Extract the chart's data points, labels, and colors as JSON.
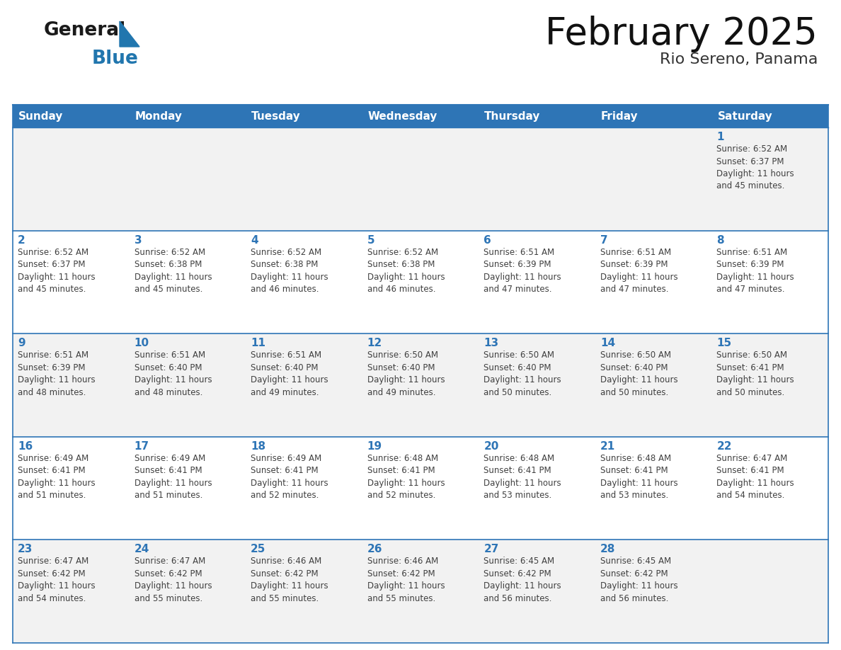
{
  "title": "February 2025",
  "subtitle": "Rio Sereno, Panama",
  "header_bg_color": "#2E75B6",
  "header_text_color": "#FFFFFF",
  "weekdays": [
    "Sunday",
    "Monday",
    "Tuesday",
    "Wednesday",
    "Thursday",
    "Friday",
    "Saturday"
  ],
  "bg_color": "#FFFFFF",
  "cell_bg_color_even": "#F2F2F2",
  "cell_bg_color_odd": "#FFFFFF",
  "day_num_color": "#2E75B6",
  "text_color": "#404040",
  "border_color": "#2E75B6",
  "logo_general_color": "#1A1A1A",
  "logo_blue_color": "#2176AE",
  "days": [
    {
      "day": 1,
      "col": 6,
      "row": 0,
      "sunrise": "6:52 AM",
      "sunset": "6:37 PM",
      "daylight_line1": "Daylight: 11 hours",
      "daylight_line2": "and 45 minutes."
    },
    {
      "day": 2,
      "col": 0,
      "row": 1,
      "sunrise": "6:52 AM",
      "sunset": "6:37 PM",
      "daylight_line1": "Daylight: 11 hours",
      "daylight_line2": "and 45 minutes."
    },
    {
      "day": 3,
      "col": 1,
      "row": 1,
      "sunrise": "6:52 AM",
      "sunset": "6:38 PM",
      "daylight_line1": "Daylight: 11 hours",
      "daylight_line2": "and 45 minutes."
    },
    {
      "day": 4,
      "col": 2,
      "row": 1,
      "sunrise": "6:52 AM",
      "sunset": "6:38 PM",
      "daylight_line1": "Daylight: 11 hours",
      "daylight_line2": "and 46 minutes."
    },
    {
      "day": 5,
      "col": 3,
      "row": 1,
      "sunrise": "6:52 AM",
      "sunset": "6:38 PM",
      "daylight_line1": "Daylight: 11 hours",
      "daylight_line2": "and 46 minutes."
    },
    {
      "day": 6,
      "col": 4,
      "row": 1,
      "sunrise": "6:51 AM",
      "sunset": "6:39 PM",
      "daylight_line1": "Daylight: 11 hours",
      "daylight_line2": "and 47 minutes."
    },
    {
      "day": 7,
      "col": 5,
      "row": 1,
      "sunrise": "6:51 AM",
      "sunset": "6:39 PM",
      "daylight_line1": "Daylight: 11 hours",
      "daylight_line2": "and 47 minutes."
    },
    {
      "day": 8,
      "col": 6,
      "row": 1,
      "sunrise": "6:51 AM",
      "sunset": "6:39 PM",
      "daylight_line1": "Daylight: 11 hours",
      "daylight_line2": "and 47 minutes."
    },
    {
      "day": 9,
      "col": 0,
      "row": 2,
      "sunrise": "6:51 AM",
      "sunset": "6:39 PM",
      "daylight_line1": "Daylight: 11 hours",
      "daylight_line2": "and 48 minutes."
    },
    {
      "day": 10,
      "col": 1,
      "row": 2,
      "sunrise": "6:51 AM",
      "sunset": "6:40 PM",
      "daylight_line1": "Daylight: 11 hours",
      "daylight_line2": "and 48 minutes."
    },
    {
      "day": 11,
      "col": 2,
      "row": 2,
      "sunrise": "6:51 AM",
      "sunset": "6:40 PM",
      "daylight_line1": "Daylight: 11 hours",
      "daylight_line2": "and 49 minutes."
    },
    {
      "day": 12,
      "col": 3,
      "row": 2,
      "sunrise": "6:50 AM",
      "sunset": "6:40 PM",
      "daylight_line1": "Daylight: 11 hours",
      "daylight_line2": "and 49 minutes."
    },
    {
      "day": 13,
      "col": 4,
      "row": 2,
      "sunrise": "6:50 AM",
      "sunset": "6:40 PM",
      "daylight_line1": "Daylight: 11 hours",
      "daylight_line2": "and 50 minutes."
    },
    {
      "day": 14,
      "col": 5,
      "row": 2,
      "sunrise": "6:50 AM",
      "sunset": "6:40 PM",
      "daylight_line1": "Daylight: 11 hours",
      "daylight_line2": "and 50 minutes."
    },
    {
      "day": 15,
      "col": 6,
      "row": 2,
      "sunrise": "6:50 AM",
      "sunset": "6:41 PM",
      "daylight_line1": "Daylight: 11 hours",
      "daylight_line2": "and 50 minutes."
    },
    {
      "day": 16,
      "col": 0,
      "row": 3,
      "sunrise": "6:49 AM",
      "sunset": "6:41 PM",
      "daylight_line1": "Daylight: 11 hours",
      "daylight_line2": "and 51 minutes."
    },
    {
      "day": 17,
      "col": 1,
      "row": 3,
      "sunrise": "6:49 AM",
      "sunset": "6:41 PM",
      "daylight_line1": "Daylight: 11 hours",
      "daylight_line2": "and 51 minutes."
    },
    {
      "day": 18,
      "col": 2,
      "row": 3,
      "sunrise": "6:49 AM",
      "sunset": "6:41 PM",
      "daylight_line1": "Daylight: 11 hours",
      "daylight_line2": "and 52 minutes."
    },
    {
      "day": 19,
      "col": 3,
      "row": 3,
      "sunrise": "6:48 AM",
      "sunset": "6:41 PM",
      "daylight_line1": "Daylight: 11 hours",
      "daylight_line2": "and 52 minutes."
    },
    {
      "day": 20,
      "col": 4,
      "row": 3,
      "sunrise": "6:48 AM",
      "sunset": "6:41 PM",
      "daylight_line1": "Daylight: 11 hours",
      "daylight_line2": "and 53 minutes."
    },
    {
      "day": 21,
      "col": 5,
      "row": 3,
      "sunrise": "6:48 AM",
      "sunset": "6:41 PM",
      "daylight_line1": "Daylight: 11 hours",
      "daylight_line2": "and 53 minutes."
    },
    {
      "day": 22,
      "col": 6,
      "row": 3,
      "sunrise": "6:47 AM",
      "sunset": "6:41 PM",
      "daylight_line1": "Daylight: 11 hours",
      "daylight_line2": "and 54 minutes."
    },
    {
      "day": 23,
      "col": 0,
      "row": 4,
      "sunrise": "6:47 AM",
      "sunset": "6:42 PM",
      "daylight_line1": "Daylight: 11 hours",
      "daylight_line2": "and 54 minutes."
    },
    {
      "day": 24,
      "col": 1,
      "row": 4,
      "sunrise": "6:47 AM",
      "sunset": "6:42 PM",
      "daylight_line1": "Daylight: 11 hours",
      "daylight_line2": "and 55 minutes."
    },
    {
      "day": 25,
      "col": 2,
      "row": 4,
      "sunrise": "6:46 AM",
      "sunset": "6:42 PM",
      "daylight_line1": "Daylight: 11 hours",
      "daylight_line2": "and 55 minutes."
    },
    {
      "day": 26,
      "col": 3,
      "row": 4,
      "sunrise": "6:46 AM",
      "sunset": "6:42 PM",
      "daylight_line1": "Daylight: 11 hours",
      "daylight_line2": "and 55 minutes."
    },
    {
      "day": 27,
      "col": 4,
      "row": 4,
      "sunrise": "6:45 AM",
      "sunset": "6:42 PM",
      "daylight_line1": "Daylight: 11 hours",
      "daylight_line2": "and 56 minutes."
    },
    {
      "day": 28,
      "col": 5,
      "row": 4,
      "sunrise": "6:45 AM",
      "sunset": "6:42 PM",
      "daylight_line1": "Daylight: 11 hours",
      "daylight_line2": "and 56 minutes."
    }
  ],
  "num_rows": 5,
  "num_cols": 7
}
